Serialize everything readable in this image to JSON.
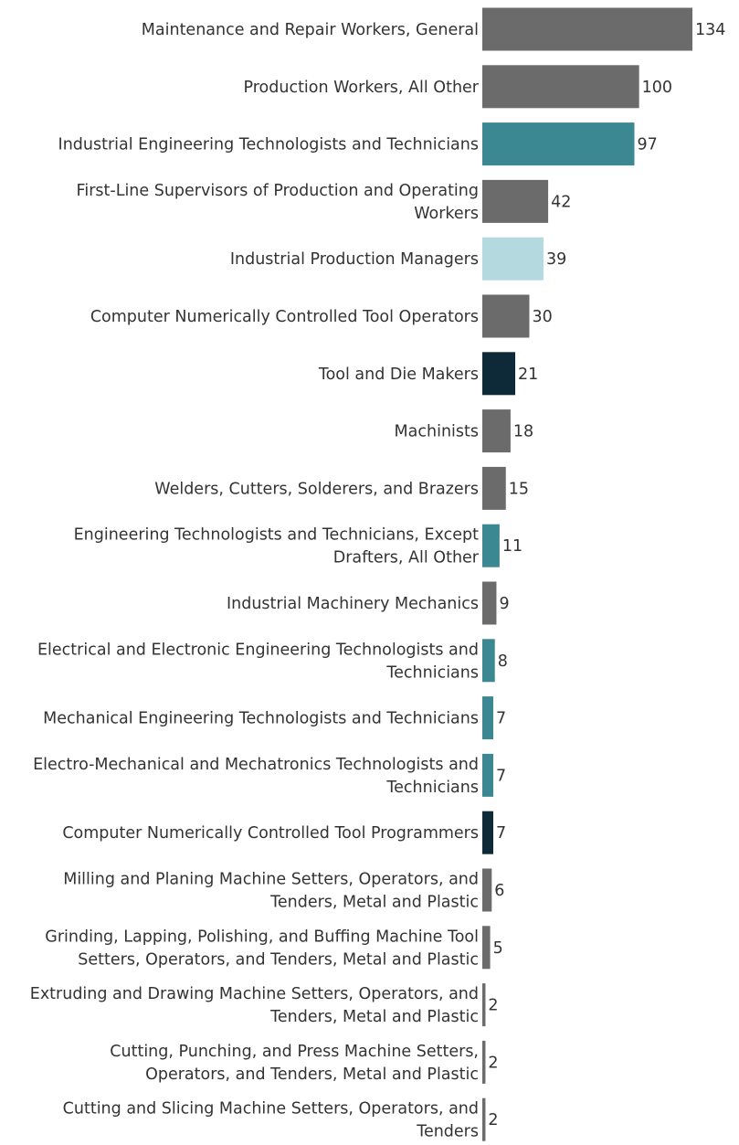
{
  "chart_data": {
    "type": "bar",
    "orientation": "horizontal",
    "title": "",
    "xlabel": "",
    "ylabel": "",
    "xlim": [
      0,
      134
    ],
    "grid": false,
    "legend": "none",
    "colors": {
      "gray": "#6b6b6b",
      "teal": "#3c8892",
      "light_teal": "#b4d9df",
      "navy": "#0e2a38"
    },
    "bars": [
      {
        "lines": [
          "Maintenance and Repair Workers, General"
        ],
        "value": 134,
        "color_key": "gray"
      },
      {
        "lines": [
          "Production Workers, All Other"
        ],
        "value": 100,
        "color_key": "gray"
      },
      {
        "lines": [
          "Industrial Engineering Technologists and Technicians"
        ],
        "value": 97,
        "color_key": "teal"
      },
      {
        "lines": [
          "First-Line Supervisors of Production and Operating",
          "Workers"
        ],
        "value": 42,
        "color_key": "gray"
      },
      {
        "lines": [
          "Industrial Production Managers"
        ],
        "value": 39,
        "color_key": "light_teal"
      },
      {
        "lines": [
          "Computer Numerically Controlled Tool Operators"
        ],
        "value": 30,
        "color_key": "gray"
      },
      {
        "lines": [
          "Tool and Die Makers"
        ],
        "value": 21,
        "color_key": "navy"
      },
      {
        "lines": [
          "Machinists"
        ],
        "value": 18,
        "color_key": "gray"
      },
      {
        "lines": [
          "Welders, Cutters, Solderers, and Brazers"
        ],
        "value": 15,
        "color_key": "gray"
      },
      {
        "lines": [
          "Engineering Technologists and Technicians, Except",
          "Drafters, All Other"
        ],
        "value": 11,
        "color_key": "teal"
      },
      {
        "lines": [
          "Industrial Machinery Mechanics"
        ],
        "value": 9,
        "color_key": "gray"
      },
      {
        "lines": [
          "Electrical and Electronic Engineering Technologists and",
          "Technicians"
        ],
        "value": 8,
        "color_key": "teal"
      },
      {
        "lines": [
          "Mechanical Engineering Technologists and Technicians"
        ],
        "value": 7,
        "color_key": "teal"
      },
      {
        "lines": [
          "Electro-Mechanical and Mechatronics Technologists and",
          "Technicians"
        ],
        "value": 7,
        "color_key": "teal"
      },
      {
        "lines": [
          "Computer Numerically Controlled Tool Programmers"
        ],
        "value": 7,
        "color_key": "navy"
      },
      {
        "lines": [
          "Milling and Planing Machine Setters, Operators, and",
          "Tenders, Metal and Plastic"
        ],
        "value": 6,
        "color_key": "gray"
      },
      {
        "lines": [
          "Grinding, Lapping, Polishing, and Buffing Machine Tool",
          "Setters, Operators, and Tenders, Metal and Plastic"
        ],
        "value": 5,
        "color_key": "gray"
      },
      {
        "lines": [
          "Extruding and Drawing Machine Setters, Operators, and",
          "Tenders, Metal and Plastic"
        ],
        "value": 2,
        "color_key": "gray"
      },
      {
        "lines": [
          "Cutting, Punching, and Press Machine Setters,",
          "Operators, and Tenders, Metal and Plastic"
        ],
        "value": 2,
        "color_key": "gray"
      },
      {
        "lines": [
          "Cutting and Slicing Machine Setters, Operators, and",
          "Tenders"
        ],
        "value": 2,
        "color_key": "gray"
      }
    ]
  }
}
